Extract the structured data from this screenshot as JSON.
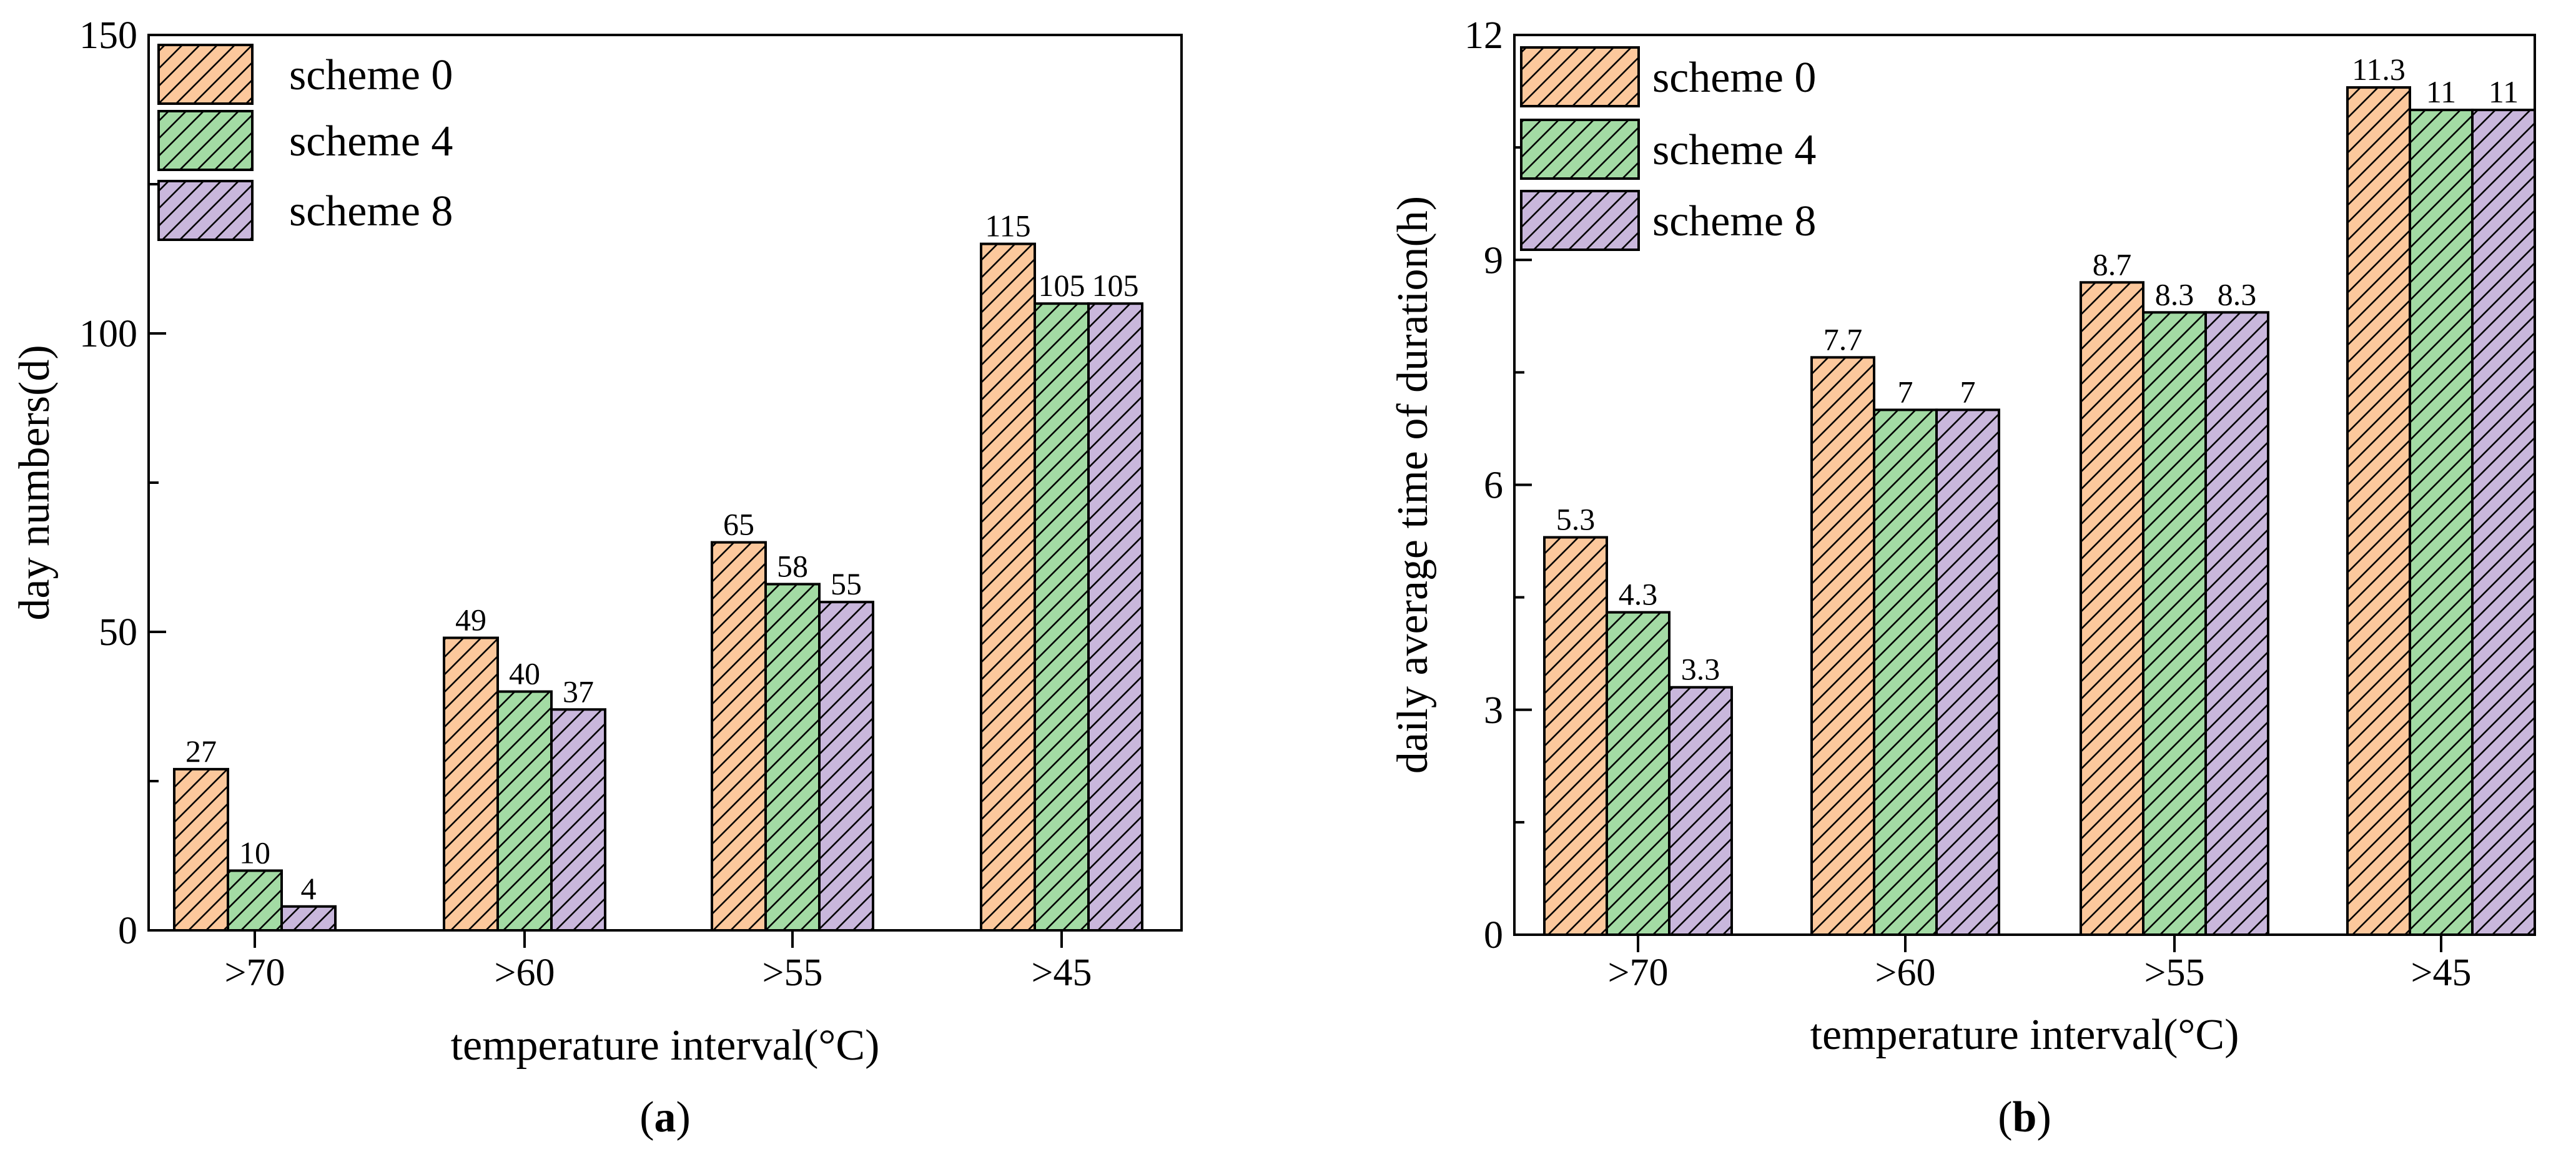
{
  "chart_data": [
    {
      "type": "bar",
      "panel_label": "a",
      "categories": [
        ">70",
        ">60",
        ">55",
        ">45"
      ],
      "series": [
        {
          "name": "scheme 0",
          "values": [
            27,
            49,
            65,
            115
          ],
          "labels": [
            "27",
            "49",
            "65",
            "115"
          ]
        },
        {
          "name": "scheme 4",
          "values": [
            10,
            40,
            58,
            105
          ],
          "labels": [
            "10",
            "40",
            "58",
            "105"
          ]
        },
        {
          "name": "scheme 8",
          "values": [
            4,
            37,
            55,
            105
          ],
          "labels": [
            "4",
            "37",
            "55",
            "105"
          ]
        }
      ],
      "xlabel": "temperature interval(°C)",
      "ylabel": "day numbers(d)",
      "ylim": [
        0,
        150
      ],
      "yticks": [
        0,
        50,
        100,
        150
      ],
      "yminor_step": 25,
      "legend": "top-left"
    },
    {
      "type": "bar",
      "panel_label": "b",
      "categories": [
        ">70",
        ">60",
        ">55",
        ">45"
      ],
      "series": [
        {
          "name": "scheme 0",
          "values": [
            5.3,
            7.7,
            8.7,
            11.3
          ],
          "labels": [
            "5.3",
            "7.7",
            "8.7",
            "11.3"
          ]
        },
        {
          "name": "scheme 4",
          "values": [
            4.3,
            7,
            8.3,
            11
          ],
          "labels": [
            "4.3",
            "7",
            "8.3",
            "11"
          ]
        },
        {
          "name": "scheme 8",
          "values": [
            3.3,
            7,
            8.3,
            11
          ],
          "labels": [
            "3.3",
            "7",
            "8.3",
            "11"
          ]
        }
      ],
      "xlabel": "temperature interval(°C)",
      "ylabel": "daily average time of duration(h)",
      "ylim": [
        0,
        12
      ],
      "yticks": [
        0,
        3,
        6,
        9,
        12
      ],
      "yminor_step": 1.5,
      "legend": "top-left"
    }
  ],
  "series_colors": {
    "scheme 0": "#fcc89c",
    "scheme 4": "#a3dba4",
    "scheme 8": "#c9b7dc"
  }
}
